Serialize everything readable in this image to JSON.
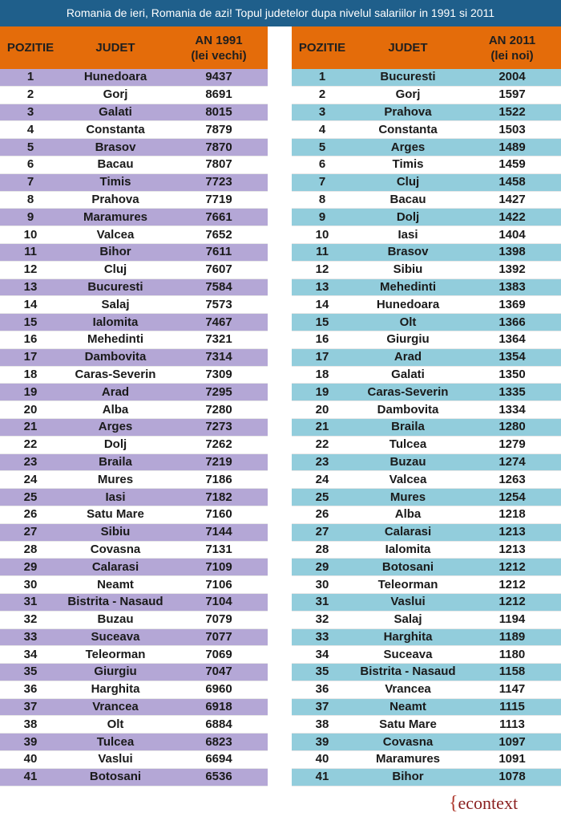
{
  "title": "Romania de ieri, Romania de azi! Topul judetelor dupa nivelul salariilor in 1991 si 2011",
  "left_table": {
    "headers": {
      "pos": "POZITIE",
      "county": "JUDET",
      "value_line1": "AN 1991",
      "value_line2": "(lei vechi)"
    },
    "rows": [
      [
        "1",
        "Hunedoara",
        "9437"
      ],
      [
        "2",
        "Gorj",
        "8691"
      ],
      [
        "3",
        "Galati",
        "8015"
      ],
      [
        "4",
        "Constanta",
        "7879"
      ],
      [
        "5",
        "Brasov",
        "7870"
      ],
      [
        "6",
        "Bacau",
        "7807"
      ],
      [
        "7",
        "Timis",
        "7723"
      ],
      [
        "8",
        "Prahova",
        "7719"
      ],
      [
        "9",
        "Maramures",
        "7661"
      ],
      [
        "10",
        "Valcea",
        "7652"
      ],
      [
        "11",
        "Bihor",
        "7611"
      ],
      [
        "12",
        "Cluj",
        "7607"
      ],
      [
        "13",
        "Bucuresti",
        "7584"
      ],
      [
        "14",
        "Salaj",
        "7573"
      ],
      [
        "15",
        "Ialomita",
        "7467"
      ],
      [
        "16",
        "Mehedinti",
        "7321"
      ],
      [
        "17",
        "Dambovita",
        "7314"
      ],
      [
        "18",
        "Caras-Severin",
        "7309"
      ],
      [
        "19",
        "Arad",
        "7295"
      ],
      [
        "20",
        "Alba",
        "7280"
      ],
      [
        "21",
        "Arges",
        "7273"
      ],
      [
        "22",
        "Dolj",
        "7262"
      ],
      [
        "23",
        "Braila",
        "7219"
      ],
      [
        "24",
        "Mures",
        "7186"
      ],
      [
        "25",
        "Iasi",
        "7182"
      ],
      [
        "26",
        "Satu Mare",
        "7160"
      ],
      [
        "27",
        "Sibiu",
        "7144"
      ],
      [
        "28",
        "Covasna",
        "7131"
      ],
      [
        "29",
        "Calarasi",
        "7109"
      ],
      [
        "30",
        "Neamt",
        "7106"
      ],
      [
        "31",
        "Bistrita - Nasaud",
        "7104"
      ],
      [
        "32",
        "Buzau",
        "7079"
      ],
      [
        "33",
        "Suceava",
        "7077"
      ],
      [
        "34",
        "Teleorman",
        "7069"
      ],
      [
        "35",
        "Giurgiu",
        "7047"
      ],
      [
        "36",
        "Harghita",
        "6960"
      ],
      [
        "37",
        "Vrancea",
        "6918"
      ],
      [
        "38",
        "Olt",
        "6884"
      ],
      [
        "39",
        "Tulcea",
        "6823"
      ],
      [
        "40",
        "Vaslui",
        "6694"
      ],
      [
        "41",
        "Botosani",
        "6536"
      ]
    ]
  },
  "right_table": {
    "headers": {
      "pos": "POZITIE",
      "county": "JUDET",
      "value_line1": "AN 2011",
      "value_line2": "(lei noi)"
    },
    "rows": [
      [
        "1",
        "Bucuresti",
        "2004"
      ],
      [
        "2",
        "Gorj",
        "1597"
      ],
      [
        "3",
        "Prahova",
        "1522"
      ],
      [
        "4",
        "Constanta",
        "1503"
      ],
      [
        "5",
        "Arges",
        "1489"
      ],
      [
        "6",
        "Timis",
        "1459"
      ],
      [
        "7",
        "Cluj",
        "1458"
      ],
      [
        "8",
        "Bacau",
        "1427"
      ],
      [
        "9",
        "Dolj",
        "1422"
      ],
      [
        "10",
        "Iasi",
        "1404"
      ],
      [
        "11",
        "Brasov",
        "1398"
      ],
      [
        "12",
        "Sibiu",
        "1392"
      ],
      [
        "13",
        "Mehedinti",
        "1383"
      ],
      [
        "14",
        "Hunedoara",
        "1369"
      ],
      [
        "15",
        "Olt",
        "1366"
      ],
      [
        "16",
        "Giurgiu",
        "1364"
      ],
      [
        "17",
        "Arad",
        "1354"
      ],
      [
        "18",
        "Galati",
        "1350"
      ],
      [
        "19",
        "Caras-Severin",
        "1335"
      ],
      [
        "20",
        "Dambovita",
        "1334"
      ],
      [
        "21",
        "Braila",
        "1280"
      ],
      [
        "22",
        "Tulcea",
        "1279"
      ],
      [
        "23",
        "Buzau",
        "1274"
      ],
      [
        "24",
        "Valcea",
        "1263"
      ],
      [
        "25",
        "Mures",
        "1254"
      ],
      [
        "26",
        "Alba",
        "1218"
      ],
      [
        "27",
        "Calarasi",
        "1213"
      ],
      [
        "28",
        "Ialomita",
        "1213"
      ],
      [
        "29",
        "Botosani",
        "1212"
      ],
      [
        "30",
        "Teleorman",
        "1212"
      ],
      [
        "31",
        "Vaslui",
        "1212"
      ],
      [
        "32",
        "Salaj",
        "1194"
      ],
      [
        "33",
        "Harghita",
        "1189"
      ],
      [
        "34",
        "Suceava",
        "1180"
      ],
      [
        "35",
        "Bistrita - Nasaud",
        "1158"
      ],
      [
        "36",
        "Vrancea",
        "1147"
      ],
      [
        "37",
        "Neamt",
        "1115"
      ],
      [
        "38",
        "Satu Mare",
        "1113"
      ],
      [
        "39",
        "Covasna",
        "1097"
      ],
      [
        "40",
        "Maramures",
        "1091"
      ],
      [
        "41",
        "Bihor",
        "1078"
      ]
    ]
  },
  "logo": {
    "brace": "{",
    "text": "econtext"
  },
  "colors": {
    "header": "#e46c0a",
    "title_bg": "#1f5f8b",
    "left_band": "#b4a7d6",
    "right_band": "#92cddc"
  }
}
